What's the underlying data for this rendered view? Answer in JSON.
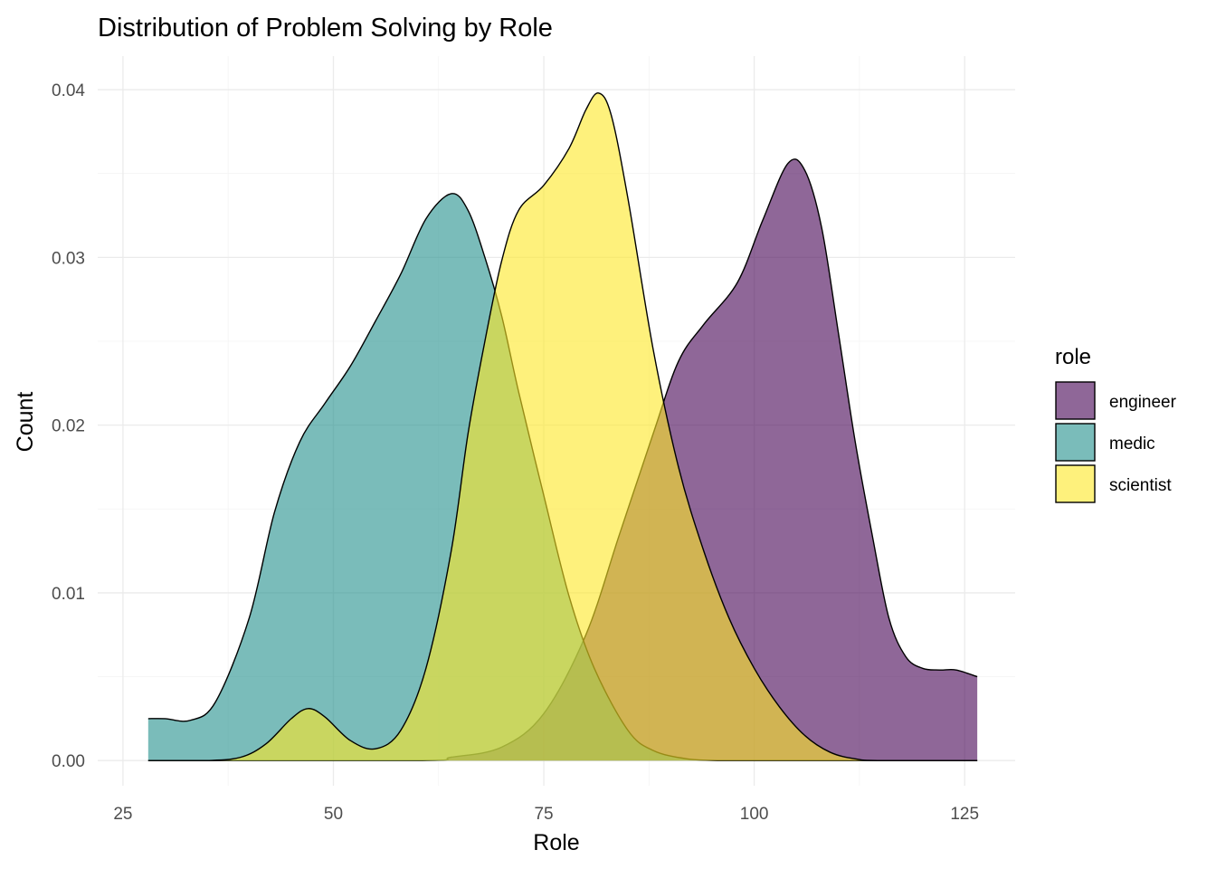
{
  "chart_data": {
    "type": "area",
    "subtype": "density",
    "title": "Distribution of Problem Solving by Role",
    "xlabel": "Role",
    "ylabel": "Count",
    "xlim": [
      22,
      131
    ],
    "ylim": [
      -0.0015,
      0.042
    ],
    "x_ticks": [
      25,
      50,
      75,
      100,
      125
    ],
    "x_tick_labels": [
      "25",
      "50",
      "75",
      "100",
      "125"
    ],
    "y_ticks": [
      0,
      0.01,
      0.02,
      0.03,
      0.04
    ],
    "y_tick_labels": [
      "0.00",
      "0.01",
      "0.02",
      "0.03",
      "0.04"
    ],
    "grid": true,
    "legend": {
      "title": "role",
      "position": "right"
    },
    "series": [
      {
        "name": "engineer",
        "color": "#440154",
        "opacity": 0.6,
        "x": [
          28,
          60,
          64,
          70,
          75,
          80,
          84,
          88,
          91,
          94,
          98,
          101,
          104,
          106,
          108,
          110,
          112,
          114,
          116,
          118,
          120,
          122,
          124,
          126.5
        ],
        "y": [
          0,
          0,
          0.0002,
          0.0008,
          0.0028,
          0.0075,
          0.0135,
          0.0195,
          0.0238,
          0.026,
          0.0285,
          0.0322,
          0.0356,
          0.0352,
          0.0318,
          0.0255,
          0.019,
          0.0135,
          0.0085,
          0.0062,
          0.0055,
          0.0054,
          0.0054,
          0.005
        ]
      },
      {
        "name": "medic",
        "color": "#21908C",
        "opacity": 0.6,
        "x": [
          28,
          30,
          33,
          36,
          40,
          43,
          46,
          49,
          52,
          55,
          58,
          61,
          64,
          66,
          68,
          70,
          72,
          75,
          78,
          81,
          85,
          88,
          92,
          96,
          100,
          126.5
        ],
        "y": [
          0.0025,
          0.0025,
          0.0024,
          0.0035,
          0.0085,
          0.0148,
          0.019,
          0.0213,
          0.0235,
          0.0262,
          0.029,
          0.0323,
          0.0338,
          0.0328,
          0.03,
          0.0265,
          0.022,
          0.0158,
          0.0098,
          0.0055,
          0.0018,
          0.0006,
          0.0001,
          0,
          0,
          0
        ]
      },
      {
        "name": "scientist",
        "color": "#FDE725",
        "opacity": 0.6,
        "x": [
          28,
          35,
          39,
          42,
          45,
          47,
          49,
          52,
          55,
          58,
          61,
          64,
          66,
          68,
          70,
          72,
          75,
          78,
          80,
          81.5,
          83,
          85,
          88,
          91,
          94,
          97,
          100,
          103,
          106,
          109,
          112,
          115,
          126.5
        ],
        "y": [
          0,
          0,
          0.0002,
          0.001,
          0.0025,
          0.0031,
          0.0026,
          0.0012,
          0.0007,
          0.0018,
          0.0055,
          0.0125,
          0.0195,
          0.025,
          0.0298,
          0.0328,
          0.0343,
          0.0365,
          0.0388,
          0.0398,
          0.0385,
          0.0335,
          0.0245,
          0.0175,
          0.0125,
          0.0085,
          0.0055,
          0.0032,
          0.0015,
          0.0005,
          0.0001,
          0,
          0
        ]
      }
    ]
  }
}
